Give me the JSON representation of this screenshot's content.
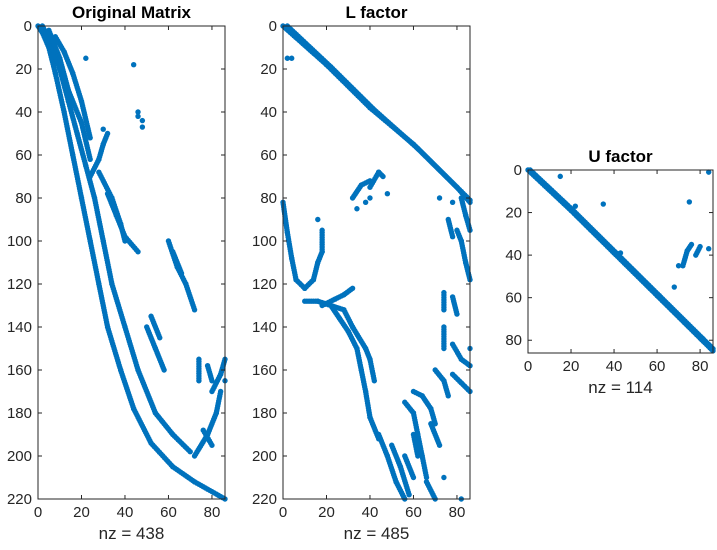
{
  "figure": {
    "marker_color": "#0072BD"
  },
  "chart_data": [
    {
      "type": "scatter",
      "plot": "spy",
      "title": "Original Matrix",
      "xlabel": "nz = 438",
      "xlim": [
        0,
        86
      ],
      "ylim": [
        0,
        220
      ],
      "y_direction": "reverse",
      "xticks": [
        0,
        20,
        40,
        60,
        80
      ],
      "yticks": [
        0,
        20,
        40,
        60,
        80,
        100,
        120,
        140,
        160,
        180,
        200,
        220
      ],
      "grid": false,
      "nonzero_segments": [
        [
          [
            0,
            0
          ],
          [
            2,
            3
          ],
          [
            5,
            10
          ],
          [
            8,
            22
          ],
          [
            12,
            40
          ],
          [
            16,
            60
          ],
          [
            20,
            80
          ],
          [
            24,
            100
          ],
          [
            28,
            120
          ],
          [
            32,
            140
          ],
          [
            38,
            160
          ],
          [
            44,
            178
          ],
          [
            52,
            194
          ],
          [
            62,
            205
          ],
          [
            72,
            212
          ],
          [
            86,
            220
          ]
        ],
        [
          [
            2,
            0
          ],
          [
            6,
            8
          ],
          [
            10,
            20
          ],
          [
            14,
            35
          ],
          [
            18,
            50
          ],
          [
            22,
            65
          ],
          [
            26,
            80
          ],
          [
            30,
            100
          ],
          [
            34,
            120
          ],
          [
            40,
            140
          ],
          [
            46,
            160
          ],
          [
            54,
            180
          ],
          [
            62,
            190
          ],
          [
            70,
            198
          ]
        ],
        [
          [
            5,
            2
          ],
          [
            10,
            15
          ],
          [
            14,
            30
          ],
          [
            20,
            45
          ],
          [
            24,
            62
          ]
        ],
        [
          [
            8,
            5
          ],
          [
            12,
            12
          ],
          [
            16,
            22
          ],
          [
            20,
            35
          ],
          [
            24,
            52
          ]
        ],
        [
          [
            24,
            70
          ],
          [
            28,
            62
          ],
          [
            30,
            55
          ],
          [
            32,
            50
          ]
        ],
        [
          [
            28,
            68
          ],
          [
            34,
            80
          ],
          [
            38,
            92
          ],
          [
            40,
            100
          ]
        ],
        [
          [
            32,
            78
          ],
          [
            36,
            88
          ],
          [
            40,
            98
          ],
          [
            46,
            105
          ]
        ],
        [
          [
            50,
            140
          ],
          [
            54,
            150
          ],
          [
            58,
            160
          ]
        ],
        [
          [
            52,
            135
          ],
          [
            56,
            145
          ]
        ],
        [
          [
            60,
            100
          ],
          [
            64,
            112
          ],
          [
            68,
            120
          ],
          [
            72,
            132
          ]
        ],
        [
          [
            62,
            105
          ],
          [
            66,
            115
          ]
        ],
        [
          [
            74,
            155
          ],
          [
            74,
            165
          ]
        ],
        [
          [
            72,
            200
          ],
          [
            78,
            190
          ],
          [
            82,
            180
          ],
          [
            84,
            170
          ]
        ],
        [
          [
            78,
            158
          ],
          [
            80,
            165
          ]
        ],
        [
          [
            80,
            170
          ],
          [
            84,
            162
          ],
          [
            86,
            155
          ]
        ],
        [
          [
            76,
            188
          ],
          [
            80,
            195
          ]
        ]
      ],
      "nonzero_points": [
        [
          22,
          15
        ],
        [
          44,
          18
        ],
        [
          46,
          40
        ],
        [
          46,
          42
        ],
        [
          48,
          44
        ],
        [
          48,
          47
        ],
        [
          30,
          48
        ],
        [
          86,
          165
        ]
      ]
    },
    {
      "type": "scatter",
      "plot": "spy",
      "title": "L factor",
      "xlabel": "nz = 485",
      "xlim": [
        0,
        86
      ],
      "ylim": [
        0,
        220
      ],
      "y_direction": "reverse",
      "xticks": [
        0,
        20,
        40,
        60,
        80
      ],
      "yticks": [
        0,
        20,
        40,
        60,
        80,
        100,
        120,
        140,
        160,
        180,
        200,
        220
      ],
      "grid": false,
      "nonzero_segments": [
        [
          [
            0,
            0
          ],
          [
            20,
            18
          ],
          [
            40,
            38
          ],
          [
            60,
            55
          ],
          [
            80,
            75
          ],
          [
            86,
            82
          ]
        ],
        [
          [
            2,
            0
          ],
          [
            22,
            19
          ],
          [
            42,
            39
          ],
          [
            62,
            57
          ],
          [
            82,
            77
          ],
          [
            86,
            81
          ]
        ],
        [
          [
            0,
            82
          ],
          [
            2,
            96
          ],
          [
            4,
            108
          ],
          [
            6,
            118
          ],
          [
            10,
            122
          ],
          [
            14,
            118
          ],
          [
            16,
            110
          ],
          [
            18,
            105
          ],
          [
            18,
            95
          ]
        ],
        [
          [
            10,
            128
          ],
          [
            16,
            128
          ],
          [
            22,
            130
          ],
          [
            28,
            132
          ],
          [
            32,
            140
          ],
          [
            38,
            150
          ],
          [
            40,
            155
          ],
          [
            42,
            165
          ]
        ],
        [
          [
            22,
            130
          ],
          [
            26,
            136
          ],
          [
            30,
            142
          ],
          [
            34,
            150
          ],
          [
            36,
            160
          ],
          [
            38,
            170
          ],
          [
            40,
            182
          ],
          [
            44,
            192
          ]
        ],
        [
          [
            18,
            130
          ],
          [
            24,
            127
          ],
          [
            28,
            125
          ],
          [
            32,
            122
          ]
        ],
        [
          [
            40,
            75
          ],
          [
            44,
            68
          ],
          [
            46,
            70
          ]
        ],
        [
          [
            32,
            80
          ],
          [
            36,
            74
          ],
          [
            40,
            72
          ]
        ],
        [
          [
            44,
            190
          ],
          [
            48,
            200
          ],
          [
            52,
            212
          ],
          [
            56,
            220
          ]
        ],
        [
          [
            50,
            195
          ],
          [
            54,
            205
          ],
          [
            58,
            218
          ]
        ],
        [
          [
            56,
            175
          ],
          [
            60,
            180
          ],
          [
            62,
            190
          ],
          [
            64,
            200
          ],
          [
            66,
            210
          ]
        ],
        [
          [
            60,
            170
          ],
          [
            64,
            172
          ],
          [
            68,
            178
          ],
          [
            70,
            185
          ]
        ],
        [
          [
            70,
            160
          ],
          [
            74,
            165
          ],
          [
            76,
            172
          ]
        ],
        [
          [
            78,
            148
          ],
          [
            82,
            155
          ],
          [
            86,
            158
          ]
        ],
        [
          [
            78,
            162
          ],
          [
            82,
            166
          ],
          [
            86,
            170
          ]
        ],
        [
          [
            80,
            95
          ],
          [
            82,
            100
          ],
          [
            84,
            110
          ],
          [
            86,
            118
          ]
        ],
        [
          [
            76,
            90
          ],
          [
            78,
            98
          ]
        ],
        [
          [
            82,
            80
          ],
          [
            84,
            88
          ],
          [
            86,
            95
          ]
        ],
        [
          [
            74,
            124
          ],
          [
            74,
            132
          ]
        ],
        [
          [
            78,
            126
          ],
          [
            80,
            134
          ]
        ],
        [
          [
            60,
            190
          ],
          [
            62,
            200
          ]
        ],
        [
          [
            56,
            200
          ],
          [
            60,
            210
          ]
        ],
        [
          [
            66,
            212
          ],
          [
            70,
            220
          ]
        ],
        [
          [
            74,
            140
          ],
          [
            74,
            150
          ]
        ],
        [
          [
            68,
            185
          ],
          [
            72,
            195
          ]
        ]
      ],
      "nonzero_points": [
        [
          2,
          15
        ],
        [
          4,
          15
        ],
        [
          16,
          90
        ],
        [
          34,
          85
        ],
        [
          38,
          82
        ],
        [
          40,
          80
        ],
        [
          48,
          78
        ],
        [
          72,
          80
        ],
        [
          78,
          82
        ],
        [
          74,
          210
        ],
        [
          82,
          220
        ],
        [
          86,
          150
        ]
      ]
    },
    {
      "type": "scatter",
      "plot": "spy",
      "title": "U factor",
      "xlabel": "nz = 114",
      "xlim": [
        0,
        86
      ],
      "ylim": [
        0,
        86
      ],
      "y_direction": "reverse",
      "xticks": [
        0,
        20,
        40,
        60,
        80
      ],
      "yticks": [
        0,
        20,
        40,
        60,
        80
      ],
      "grid": false,
      "nonzero_segments": [
        [
          [
            0,
            0
          ],
          [
            20,
            19
          ],
          [
            40,
            39
          ],
          [
            60,
            59
          ],
          [
            80,
            79
          ],
          [
            86,
            85
          ]
        ],
        [
          [
            1,
            0
          ],
          [
            21,
            19
          ],
          [
            41,
            39
          ],
          [
            61,
            59
          ],
          [
            81,
            79
          ],
          [
            86,
            84
          ]
        ],
        [
          [
            72,
            45
          ],
          [
            74,
            38
          ],
          [
            76,
            35
          ]
        ],
        [
          [
            78,
            40
          ],
          [
            80,
            36
          ]
        ]
      ],
      "nonzero_points": [
        [
          15,
          3
        ],
        [
          22,
          17
        ],
        [
          35,
          16
        ],
        [
          43,
          39
        ],
        [
          68,
          55
        ],
        [
          75,
          15
        ],
        [
          84,
          1
        ],
        [
          84,
          37
        ],
        [
          70,
          45
        ]
      ]
    }
  ]
}
